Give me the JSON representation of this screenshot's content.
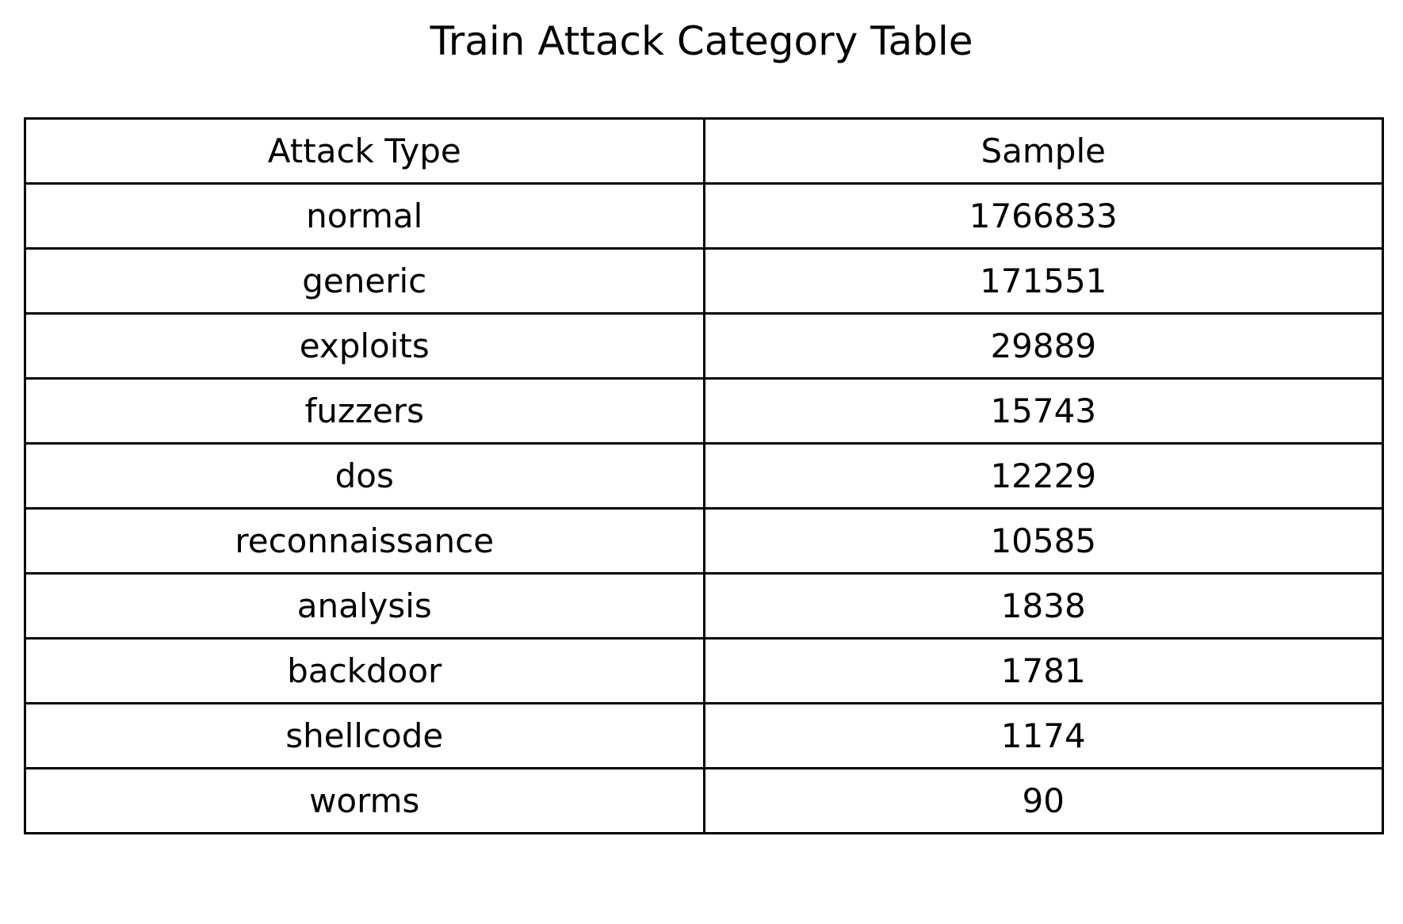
{
  "title": "Train Attack Category Table",
  "chart_data": {
    "type": "table",
    "title": "Train Attack Category Table",
    "columns": [
      "Attack Type",
      "Sample"
    ],
    "rows": [
      [
        "normal",
        "1766833"
      ],
      [
        "generic",
        "171551"
      ],
      [
        "exploits",
        "29889"
      ],
      [
        "fuzzers",
        "15743"
      ],
      [
        "dos",
        "12229"
      ],
      [
        "reconnaissance",
        "10585"
      ],
      [
        "analysis",
        "1838"
      ],
      [
        "backdoor",
        "1781"
      ],
      [
        "shellcode",
        "1174"
      ],
      [
        "worms",
        "90"
      ]
    ]
  }
}
